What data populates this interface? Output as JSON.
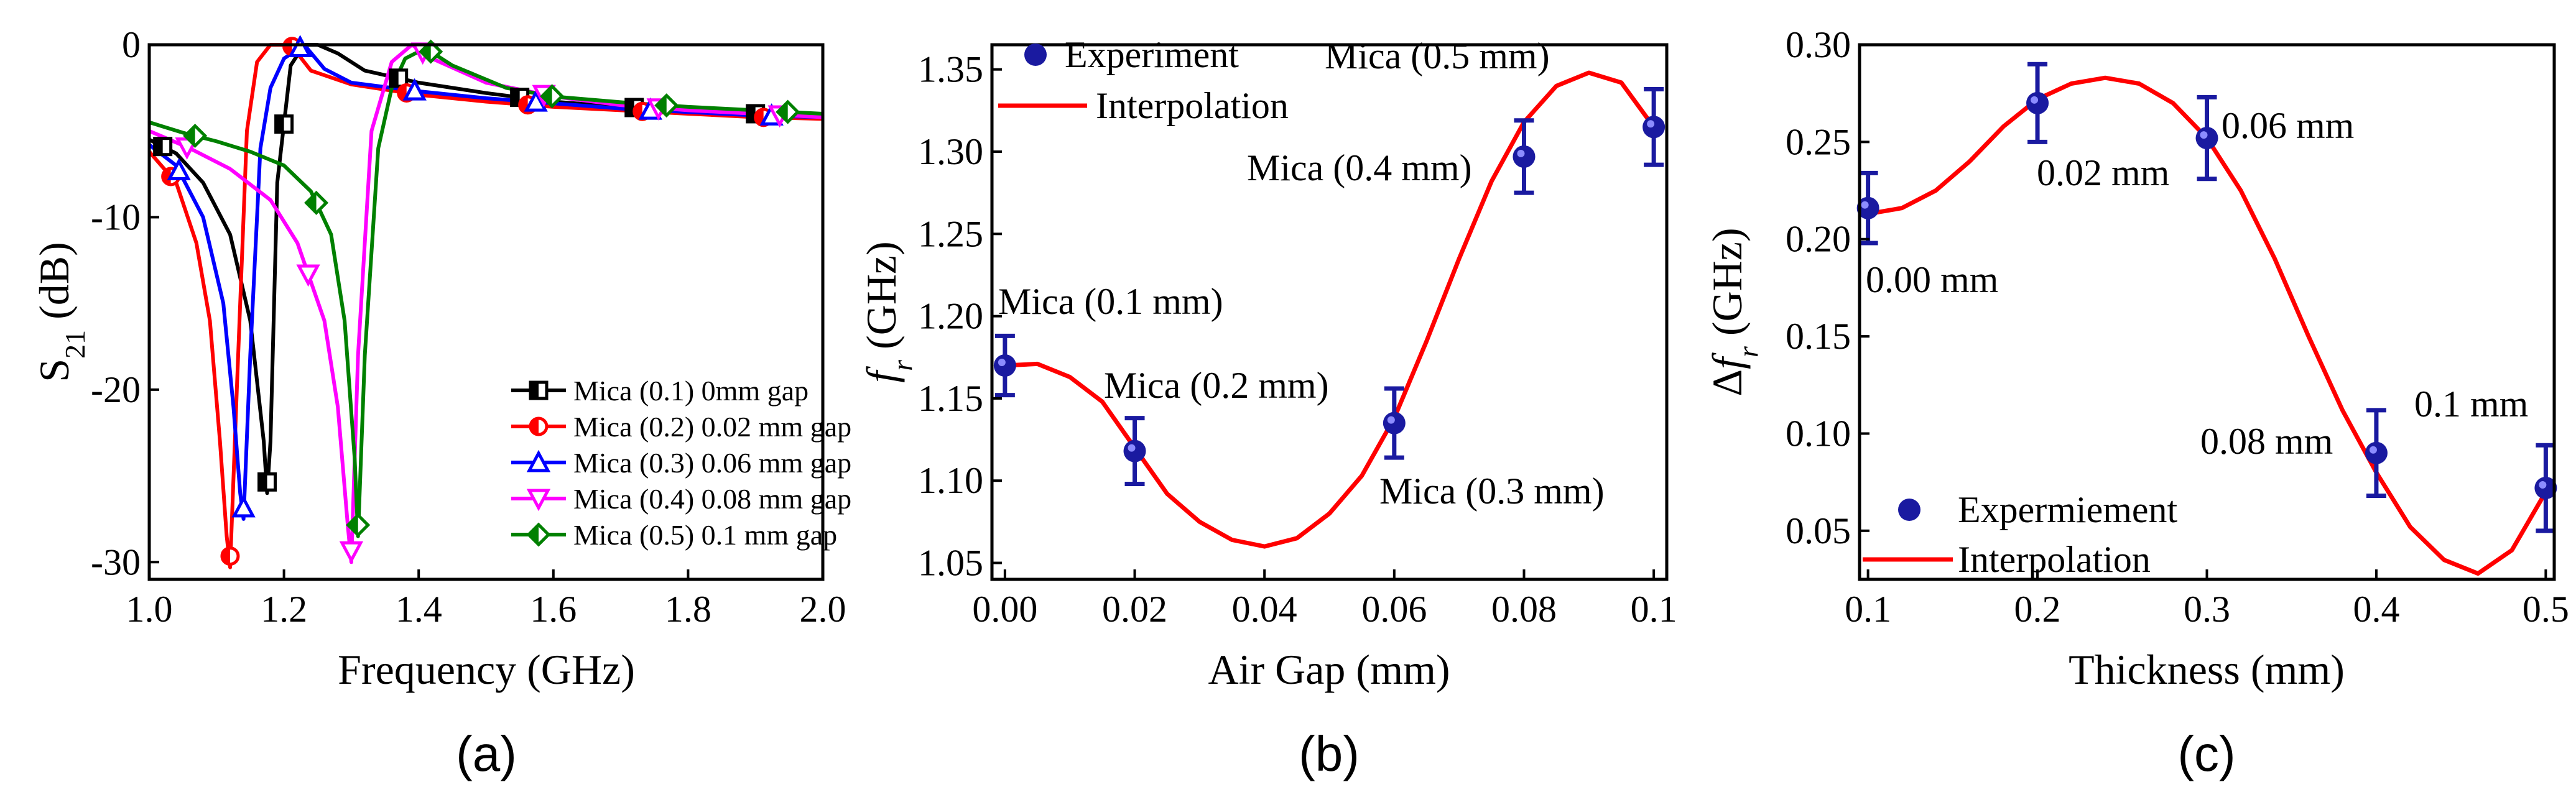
{
  "chart_data": [
    {
      "type": "line",
      "panel_label": "(a)",
      "xlabel": "Frequency (GHz)",
      "ylabel": "S21 (dB)",
      "ylabel_main": "S",
      "ylabel_sub": "21",
      "ylabel_unit": " (dB)",
      "xlim": [
        1.0,
        2.0
      ],
      "ylim": [
        -31,
        0
      ],
      "xticks": [
        "1.0",
        "1.2",
        "1.4",
        "1.6",
        "1.8",
        "2.0"
      ],
      "yticks": [
        "0",
        "-10",
        "-20",
        "-30"
      ],
      "legend_position": "bottom-right",
      "series": [
        {
          "name": "Mica (0.1) 0mm gap",
          "color": "#000000",
          "marker": "square-half",
          "x": [
            1.0,
            1.04,
            1.08,
            1.12,
            1.15,
            1.17,
            1.175,
            1.18,
            1.19,
            1.21,
            1.23,
            1.25,
            1.28,
            1.32,
            1.4,
            1.5,
            1.6,
            1.7,
            1.8,
            1.9,
            2.0
          ],
          "y": [
            -5.5,
            -6.3,
            -8,
            -11,
            -16,
            -23,
            -26,
            -23,
            -8,
            -1.2,
            0,
            0,
            -0.5,
            -1.5,
            -2.2,
            -2.8,
            -3.3,
            -3.6,
            -3.8,
            -4,
            -4.1
          ]
        },
        {
          "name": "Mica (0.2) 0.02 mm gap",
          "color": "#ff0000",
          "marker": "circle-half",
          "x": [
            1.0,
            1.04,
            1.07,
            1.09,
            1.105,
            1.115,
            1.12,
            1.13,
            1.145,
            1.16,
            1.18,
            1.21,
            1.24,
            1.3,
            1.4,
            1.5,
            1.6,
            1.7,
            1.8,
            1.9,
            2.0
          ],
          "y": [
            -6.2,
            -8,
            -11.5,
            -16,
            -23,
            -28.5,
            -30.3,
            -20,
            -5,
            -1,
            0,
            0,
            -1.5,
            -2.3,
            -2.9,
            -3.3,
            -3.6,
            -3.8,
            -4,
            -4.2,
            -4.3
          ]
        },
        {
          "name": "Mica (0.3) 0.06 mm gap",
          "color": "#0000ff",
          "marker": "triangle-up",
          "x": [
            1.0,
            1.04,
            1.08,
            1.11,
            1.125,
            1.135,
            1.14,
            1.15,
            1.165,
            1.18,
            1.2,
            1.23,
            1.26,
            1.3,
            1.4,
            1.5,
            1.6,
            1.7,
            1.8,
            1.9,
            2.0
          ],
          "y": [
            -5.8,
            -7,
            -10,
            -15,
            -21,
            -26,
            -27.5,
            -18,
            -6,
            -2.5,
            -0.8,
            0,
            -1.4,
            -2.2,
            -2.7,
            -3.1,
            -3.4,
            -3.7,
            -3.9,
            -4.1,
            -4.2
          ]
        },
        {
          "name": "Mica (0.4) 0.08 mm gap",
          "color": "#ff00ff",
          "marker": "triangle-down",
          "x": [
            1.0,
            1.06,
            1.12,
            1.18,
            1.22,
            1.26,
            1.28,
            1.295,
            1.3,
            1.31,
            1.33,
            1.36,
            1.39,
            1.42,
            1.5,
            1.6,
            1.7,
            1.8,
            1.9,
            2.0
          ],
          "y": [
            -5,
            -6,
            -7.2,
            -9,
            -11.5,
            -16,
            -21,
            -28,
            -30,
            -18,
            -5,
            -1,
            0,
            -0.8,
            -2.2,
            -3,
            -3.5,
            -3.8,
            -4,
            -4.2
          ]
        },
        {
          "name": "Mica (0.5) 0.1 mm gap",
          "color": "#008000",
          "marker": "diamond",
          "x": [
            1.0,
            1.05,
            1.1,
            1.15,
            1.2,
            1.24,
            1.27,
            1.29,
            1.305,
            1.31,
            1.32,
            1.34,
            1.36,
            1.38,
            1.41,
            1.45,
            1.53,
            1.6,
            1.72,
            1.8,
            1.9,
            2.0
          ],
          "y": [
            -4.5,
            -5.1,
            -5.6,
            -6.2,
            -7,
            -8.5,
            -11,
            -16,
            -24,
            -28.5,
            -18,
            -6,
            -2.5,
            -0.8,
            -0.2,
            -1.2,
            -2.5,
            -3,
            -3.4,
            -3.6,
            -3.8,
            -4
          ]
        }
      ]
    },
    {
      "type": "scatter",
      "panel_label": "(b)",
      "xlabel": "Air Gap (mm)",
      "ylabel_main": "f",
      "ylabel_sub": "r",
      "ylabel_unit": " (GHz)",
      "xlim": [
        -0.002,
        0.102
      ],
      "ylim": [
        1.04,
        1.365
      ],
      "xticks": [
        "0.00",
        "0.02",
        "0.04",
        "0.06",
        "0.08",
        "0.1"
      ],
      "yticks": [
        "1.05",
        "1.10",
        "1.15",
        "1.20",
        "1.25",
        "1.30",
        "1.35"
      ],
      "legend_position": "top-left",
      "legend": [
        "Experiment",
        "Interpolation"
      ],
      "points": {
        "x": [
          0.0,
          0.02,
          0.06,
          0.08,
          0.1
        ],
        "y": [
          1.17,
          1.118,
          1.135,
          1.297,
          1.315
        ],
        "err": [
          0.018,
          0.02,
          0.021,
          0.022,
          0.023
        ]
      },
      "curve": {
        "x": [
          0.0,
          0.005,
          0.01,
          0.015,
          0.02,
          0.025,
          0.03,
          0.035,
          0.04,
          0.045,
          0.05,
          0.055,
          0.06,
          0.065,
          0.07,
          0.075,
          0.08,
          0.085,
          0.09,
          0.095,
          0.1
        ],
        "y": [
          1.17,
          1.171,
          1.163,
          1.148,
          1.12,
          1.092,
          1.075,
          1.064,
          1.06,
          1.065,
          1.08,
          1.103,
          1.138,
          1.185,
          1.235,
          1.282,
          1.318,
          1.34,
          1.348,
          1.342,
          1.315
        ]
      },
      "annotations": [
        "Mica (0.1 mm)",
        "Mica (0.2 mm)",
        "Mica (0.3 mm)",
        "Mica (0.4 mm)",
        "Mica (0.5 mm)"
      ]
    },
    {
      "type": "scatter",
      "panel_label": "(c)",
      "xlabel": "Thickness (mm)",
      "ylabel_pre": "Δ",
      "ylabel_main": "f",
      "ylabel_sub": "r",
      "ylabel_unit": " (GHz)",
      "xlim": [
        0.095,
        0.505
      ],
      "ylim": [
        0.025,
        0.3
      ],
      "xticks": [
        "0.1",
        "0.2",
        "0.3",
        "0.4",
        "0.5"
      ],
      "yticks": [
        "0.05",
        "0.10",
        "0.15",
        "0.20",
        "0.25",
        "0.30"
      ],
      "legend_position": "bottom-left",
      "legend": [
        "Expermiement",
        "Interpolation"
      ],
      "points": {
        "x": [
          0.1,
          0.2,
          0.3,
          0.4,
          0.5
        ],
        "y": [
          0.216,
          0.27,
          0.252,
          0.09,
          0.072
        ],
        "err": [
          0.018,
          0.02,
          0.021,
          0.022,
          0.022
        ]
      },
      "curve": {
        "x": [
          0.1,
          0.12,
          0.14,
          0.16,
          0.18,
          0.2,
          0.22,
          0.24,
          0.26,
          0.28,
          0.3,
          0.32,
          0.34,
          0.36,
          0.38,
          0.4,
          0.42,
          0.44,
          0.46,
          0.48,
          0.5
        ],
        "y": [
          0.213,
          0.216,
          0.225,
          0.24,
          0.258,
          0.272,
          0.28,
          0.283,
          0.28,
          0.27,
          0.252,
          0.225,
          0.19,
          0.15,
          0.112,
          0.08,
          0.052,
          0.035,
          0.028,
          0.04,
          0.07
        ]
      },
      "annotations": [
        "0.00 mm",
        "0.02 mm",
        "0.06 mm",
        "0.08 mm",
        "0.1 mm"
      ]
    }
  ]
}
